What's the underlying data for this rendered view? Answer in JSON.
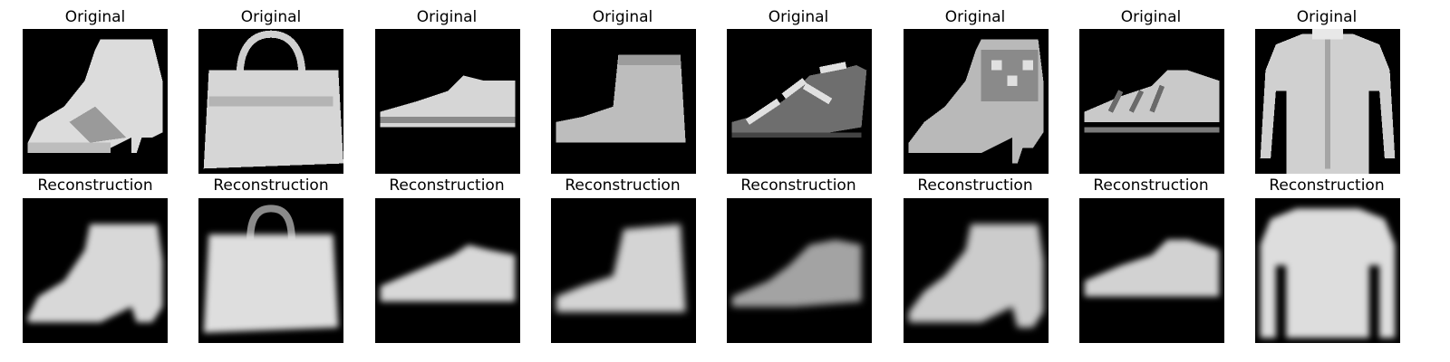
{
  "panels": [
    {
      "id": "ankle-boot",
      "original_title": "Original",
      "reconstruction_title": "Reconstruction"
    },
    {
      "id": "handbag",
      "original_title": "Original",
      "reconstruction_title": "Reconstruction"
    },
    {
      "id": "sneaker",
      "original_title": "Original",
      "reconstruction_title": "Reconstruction"
    },
    {
      "id": "short-boot",
      "original_title": "Original",
      "reconstruction_title": "Reconstruction"
    },
    {
      "id": "sandal",
      "original_title": "Original",
      "reconstruction_title": "Reconstruction"
    },
    {
      "id": "heeled-boot",
      "original_title": "Original",
      "reconstruction_title": "Reconstruction"
    },
    {
      "id": "sneaker-2",
      "original_title": "Original",
      "reconstruction_title": "Reconstruction"
    },
    {
      "id": "shirt",
      "original_title": "Original",
      "reconstruction_title": "Reconstruction"
    }
  ],
  "colors": {
    "background": "#ffffff",
    "tile_background": "#000000",
    "garment_light": "#e6e6e6",
    "garment_mid": "#a8a8a8"
  }
}
